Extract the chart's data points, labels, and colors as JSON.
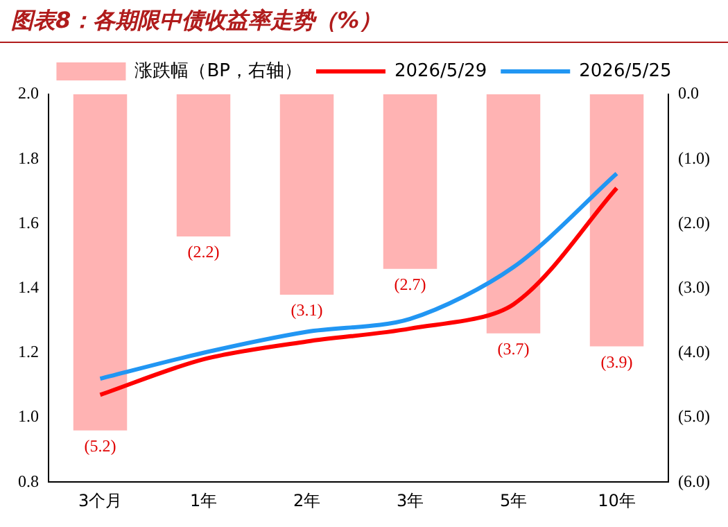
{
  "chart_data": {
    "type": "line",
    "title": "图表8：各期限中债收益率走势（%）",
    "categories": [
      "3个月",
      "1年",
      "2年",
      "3年",
      "5年",
      "10年"
    ],
    "series": [
      {
        "type": "bar",
        "axis": "y2",
        "name": "涨跌幅（BP，右轴）",
        "color": "#ffb3b3",
        "values": [
          -5.2,
          -2.2,
          -3.1,
          -2.7,
          -3.7,
          -3.9
        ],
        "value_labels": [
          "(5.2)",
          "(2.2)",
          "(3.1)",
          "(2.7)",
          "(3.7)",
          "(3.9)"
        ]
      },
      {
        "name": "2026/5/29",
        "color": "#ff0000",
        "values": [
          1.07,
          1.18,
          1.235,
          1.275,
          1.35,
          1.71
        ]
      },
      {
        "name": "2026/5/25",
        "color": "#2196f3",
        "values": [
          1.12,
          1.2,
          1.265,
          1.305,
          1.465,
          1.755
        ]
      }
    ],
    "ylim": [
      0.8,
      2.0
    ],
    "yticks": [
      {
        "value": 0.8,
        "label": "0.8"
      },
      {
        "value": 1.0,
        "label": "1.0"
      },
      {
        "value": 1.2,
        "label": "1.2"
      },
      {
        "value": 1.4,
        "label": "1.4"
      },
      {
        "value": 1.6,
        "label": "1.6"
      },
      {
        "value": 1.8,
        "label": "1.8"
      },
      {
        "value": 2.0,
        "label": "2.0"
      }
    ],
    "y2lim": [
      -6,
      0
    ],
    "y2ticks": [
      {
        "value": -6,
        "label": "(6.0)"
      },
      {
        "value": -5,
        "label": "(5.0)"
      },
      {
        "value": -4,
        "label": "(4.0)"
      },
      {
        "value": -3,
        "label": "(3.0)"
      },
      {
        "value": -2,
        "label": "(2.0)"
      },
      {
        "value": -1,
        "label": "(1.0)"
      },
      {
        "value": 0,
        "label": "0.0"
      }
    ],
    "legend": "top",
    "grid": false,
    "marker": "none",
    "line_style": "solid"
  }
}
